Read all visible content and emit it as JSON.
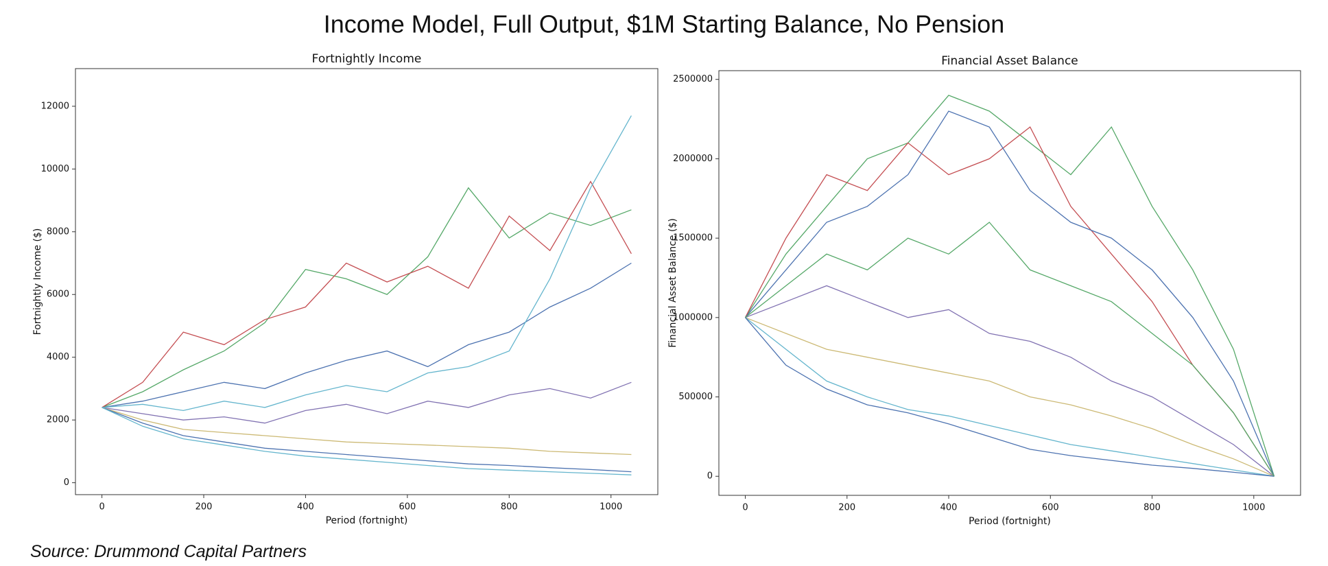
{
  "title": "Income Model, Full Output, $1M Starting Balance, No Pension",
  "source": "Source: Drummond Capital Partners",
  "chart_data": [
    {
      "type": "line",
      "title": "Fortnightly Income",
      "xlabel": "Period (fortnight)",
      "ylabel": "Fortnightly Income ($)",
      "x": [
        0,
        80,
        160,
        240,
        320,
        400,
        480,
        560,
        640,
        720,
        800,
        880,
        960,
        1040
      ],
      "xlim": [
        -52,
        1092
      ],
      "xticks": [
        0,
        200,
        400,
        600,
        800,
        1000
      ],
      "ylim": [
        -380,
        13200
      ],
      "yticks": [
        0,
        2000,
        4000,
        6000,
        8000,
        10000,
        12000
      ],
      "series": [
        {
          "color": "#4c72b0",
          "values": [
            2400,
            2600,
            2900,
            3200,
            3000,
            3500,
            3900,
            4200,
            3700,
            4400,
            4800,
            5600,
            6200,
            7000
          ]
        },
        {
          "color": "#55a868",
          "values": [
            2400,
            2900,
            3600,
            4200,
            5100,
            6800,
            6500,
            6000,
            7200,
            9400,
            7800,
            8600,
            8200,
            8700
          ]
        },
        {
          "color": "#c44e52",
          "values": [
            2400,
            3200,
            4800,
            4400,
            5200,
            5600,
            7000,
            6400,
            6900,
            6200,
            8500,
            7400,
            9600,
            7300
          ]
        },
        {
          "color": "#8172b2",
          "values": [
            2400,
            2200,
            2000,
            2100,
            1900,
            2300,
            2500,
            2200,
            2600,
            2400,
            2800,
            3000,
            2700,
            3200
          ]
        },
        {
          "color": "#ccb974",
          "values": [
            2400,
            2000,
            1700,
            1600,
            1500,
            1400,
            1300,
            1250,
            1200,
            1150,
            1100,
            1000,
            950,
            900
          ]
        },
        {
          "color": "#64b5cd",
          "values": [
            2400,
            2500,
            2300,
            2600,
            2400,
            2800,
            3100,
            2900,
            3500,
            3700,
            4200,
            6500,
            9400,
            11700
          ]
        },
        {
          "color": "#4c72b0",
          "values": [
            2400,
            1900,
            1500,
            1300,
            1100,
            1000,
            900,
            800,
            700,
            600,
            550,
            480,
            420,
            350
          ]
        },
        {
          "color": "#64b5cd",
          "values": [
            2400,
            1800,
            1400,
            1200,
            1000,
            850,
            750,
            650,
            550,
            450,
            400,
            350,
            300,
            250
          ]
        }
      ]
    },
    {
      "type": "line",
      "title": "Financial Asset Balance",
      "xlabel": "Period (fortnight)",
      "ylabel": "Financial Asset Balance ($)",
      "x": [
        0,
        80,
        160,
        240,
        320,
        400,
        480,
        560,
        640,
        720,
        800,
        880,
        960,
        1040
      ],
      "xlim": [
        -52,
        1092
      ],
      "xticks": [
        0,
        200,
        400,
        600,
        800,
        1000
      ],
      "ylim": [
        -120000,
        2555000
      ],
      "yticks": [
        0,
        500000,
        1000000,
        1500000,
        2000000,
        2500000
      ],
      "series": [
        {
          "color": "#55a868",
          "values": [
            1000000,
            1400000,
            1700000,
            2000000,
            2100000,
            2400000,
            2300000,
            2100000,
            1900000,
            2200000,
            1700000,
            1300000,
            800000,
            0
          ]
        },
        {
          "color": "#c44e52",
          "values": [
            1000000,
            1500000,
            1900000,
            1800000,
            2100000,
            1900000,
            2000000,
            2200000,
            1700000,
            1400000,
            1100000,
            700000,
            400000,
            0
          ]
        },
        {
          "color": "#4c72b0",
          "values": [
            1000000,
            1300000,
            1600000,
            1700000,
            1900000,
            2300000,
            2200000,
            1800000,
            1600000,
            1500000,
            1300000,
            1000000,
            600000,
            0
          ]
        },
        {
          "color": "#8172b2",
          "values": [
            1000000,
            1100000,
            1200000,
            1100000,
            1000000,
            1050000,
            900000,
            850000,
            750000,
            600000,
            500000,
            350000,
            200000,
            0
          ]
        },
        {
          "color": "#ccb974",
          "values": [
            1000000,
            900000,
            800000,
            750000,
            700000,
            650000,
            600000,
            500000,
            450000,
            380000,
            300000,
            200000,
            110000,
            0
          ]
        },
        {
          "color": "#64b5cd",
          "values": [
            1000000,
            800000,
            600000,
            500000,
            420000,
            380000,
            320000,
            260000,
            200000,
            160000,
            120000,
            80000,
            40000,
            0
          ]
        },
        {
          "color": "#4c72b0",
          "values": [
            1000000,
            700000,
            550000,
            450000,
            400000,
            330000,
            250000,
            170000,
            130000,
            100000,
            70000,
            50000,
            25000,
            0
          ]
        },
        {
          "color": "#55a868",
          "values": [
            1000000,
            1200000,
            1400000,
            1300000,
            1500000,
            1400000,
            1600000,
            1300000,
            1200000,
            1100000,
            900000,
            700000,
            400000,
            0
          ]
        }
      ]
    }
  ]
}
